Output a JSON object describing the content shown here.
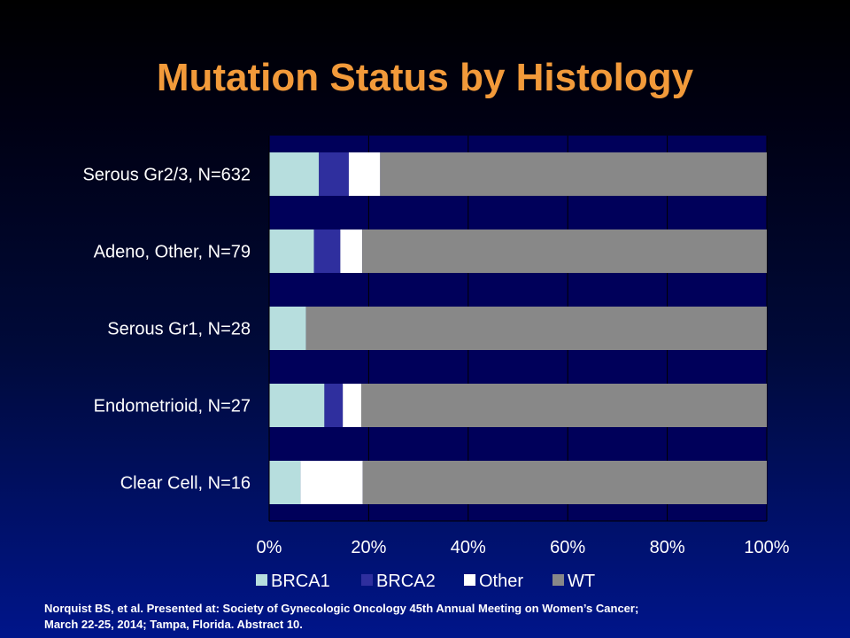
{
  "slide": {
    "title": "Mutation Status by Histology",
    "title_color": "#f29a3a",
    "text_color": "#ffffff",
    "citation_lines": [
      "Norquist BS, et al. Presented at:  Society of Gynecologic Oncology 45th Annual Meeting on Women’s Cancer;",
      "March 22-25, 2014; Tampa, Florida. Abstract 10."
    ]
  },
  "chart_data": {
    "type": "bar",
    "orientation": "horizontal",
    "stacked": "percent",
    "categories": [
      "Serous Gr2/3, N=632",
      "Adeno, Other, N=79",
      "Serous Gr1, N=28",
      "Endometrioid, N=27",
      "Clear Cell, N=16"
    ],
    "series": [
      {
        "name": "BRCA1",
        "color": "#b7dede",
        "values": [
          10,
          9,
          7.4,
          11.1,
          6.3
        ]
      },
      {
        "name": "BRCA2",
        "color": "#2f2f9e",
        "values": [
          6,
          5.3,
          0,
          3.7,
          0
        ]
      },
      {
        "name": "Other",
        "color": "#ffffff",
        "values": [
          6.3,
          4.4,
          0,
          3.7,
          12.5
        ]
      },
      {
        "name": "WT",
        "color": "#888888",
        "values": [
          77.7,
          81.3,
          92.6,
          81.5,
          81.2
        ]
      }
    ],
    "xlim": [
      0,
      100
    ],
    "xticks": [
      "0%",
      "20%",
      "40%",
      "60%",
      "80%",
      "100%"
    ],
    "grid": true,
    "legend_position": "bottom",
    "plot_background": "#00005a",
    "grid_color": "#000000"
  }
}
